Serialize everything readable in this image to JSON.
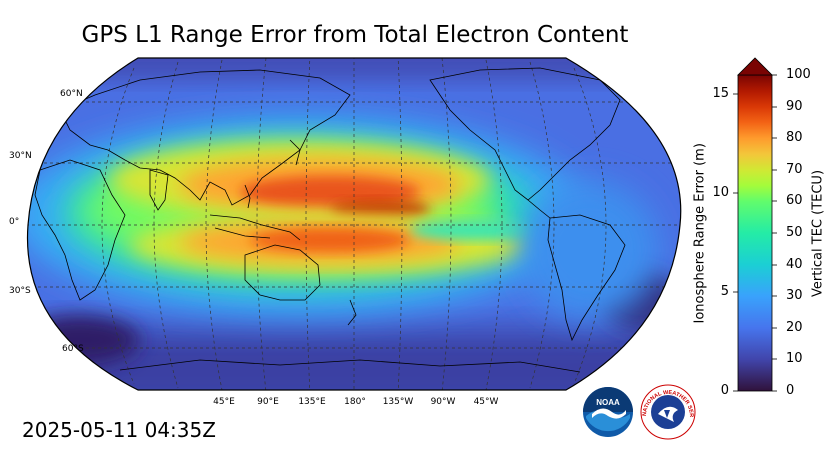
{
  "title": "GPS L1 Range Error from Total Electron Content",
  "timestamp": "2025-05-11 04:35Z",
  "map": {
    "projection": "robinson",
    "lat_labels": [
      "60°N",
      "30°N",
      "0°",
      "30°S",
      "60°S"
    ],
    "lon_labels": [
      "45°E",
      "90°E",
      "135°E",
      "180°",
      "135°W",
      "90°W",
      "45°W"
    ],
    "graticule": "dashed"
  },
  "colorbar": {
    "left_label": "Ionosphere Range Error (m)",
    "right_label": "Vertical TEC (TECU)",
    "left_ticks": [
      "0",
      "5",
      "10",
      "15"
    ],
    "right_ticks": [
      "0",
      "10",
      "20",
      "30",
      "40",
      "50",
      "60",
      "70",
      "80",
      "90",
      "100"
    ],
    "colormap": "turbo",
    "extend": "max",
    "extend_color": "#7a0403"
  },
  "logos": {
    "noaa_text": "NOAA",
    "nws_text": "NATIONAL WEATHER SERVICE"
  },
  "colors": {
    "ocean_low": "#30123b",
    "background": "#4a6fe3",
    "crest": "#e04a10"
  }
}
